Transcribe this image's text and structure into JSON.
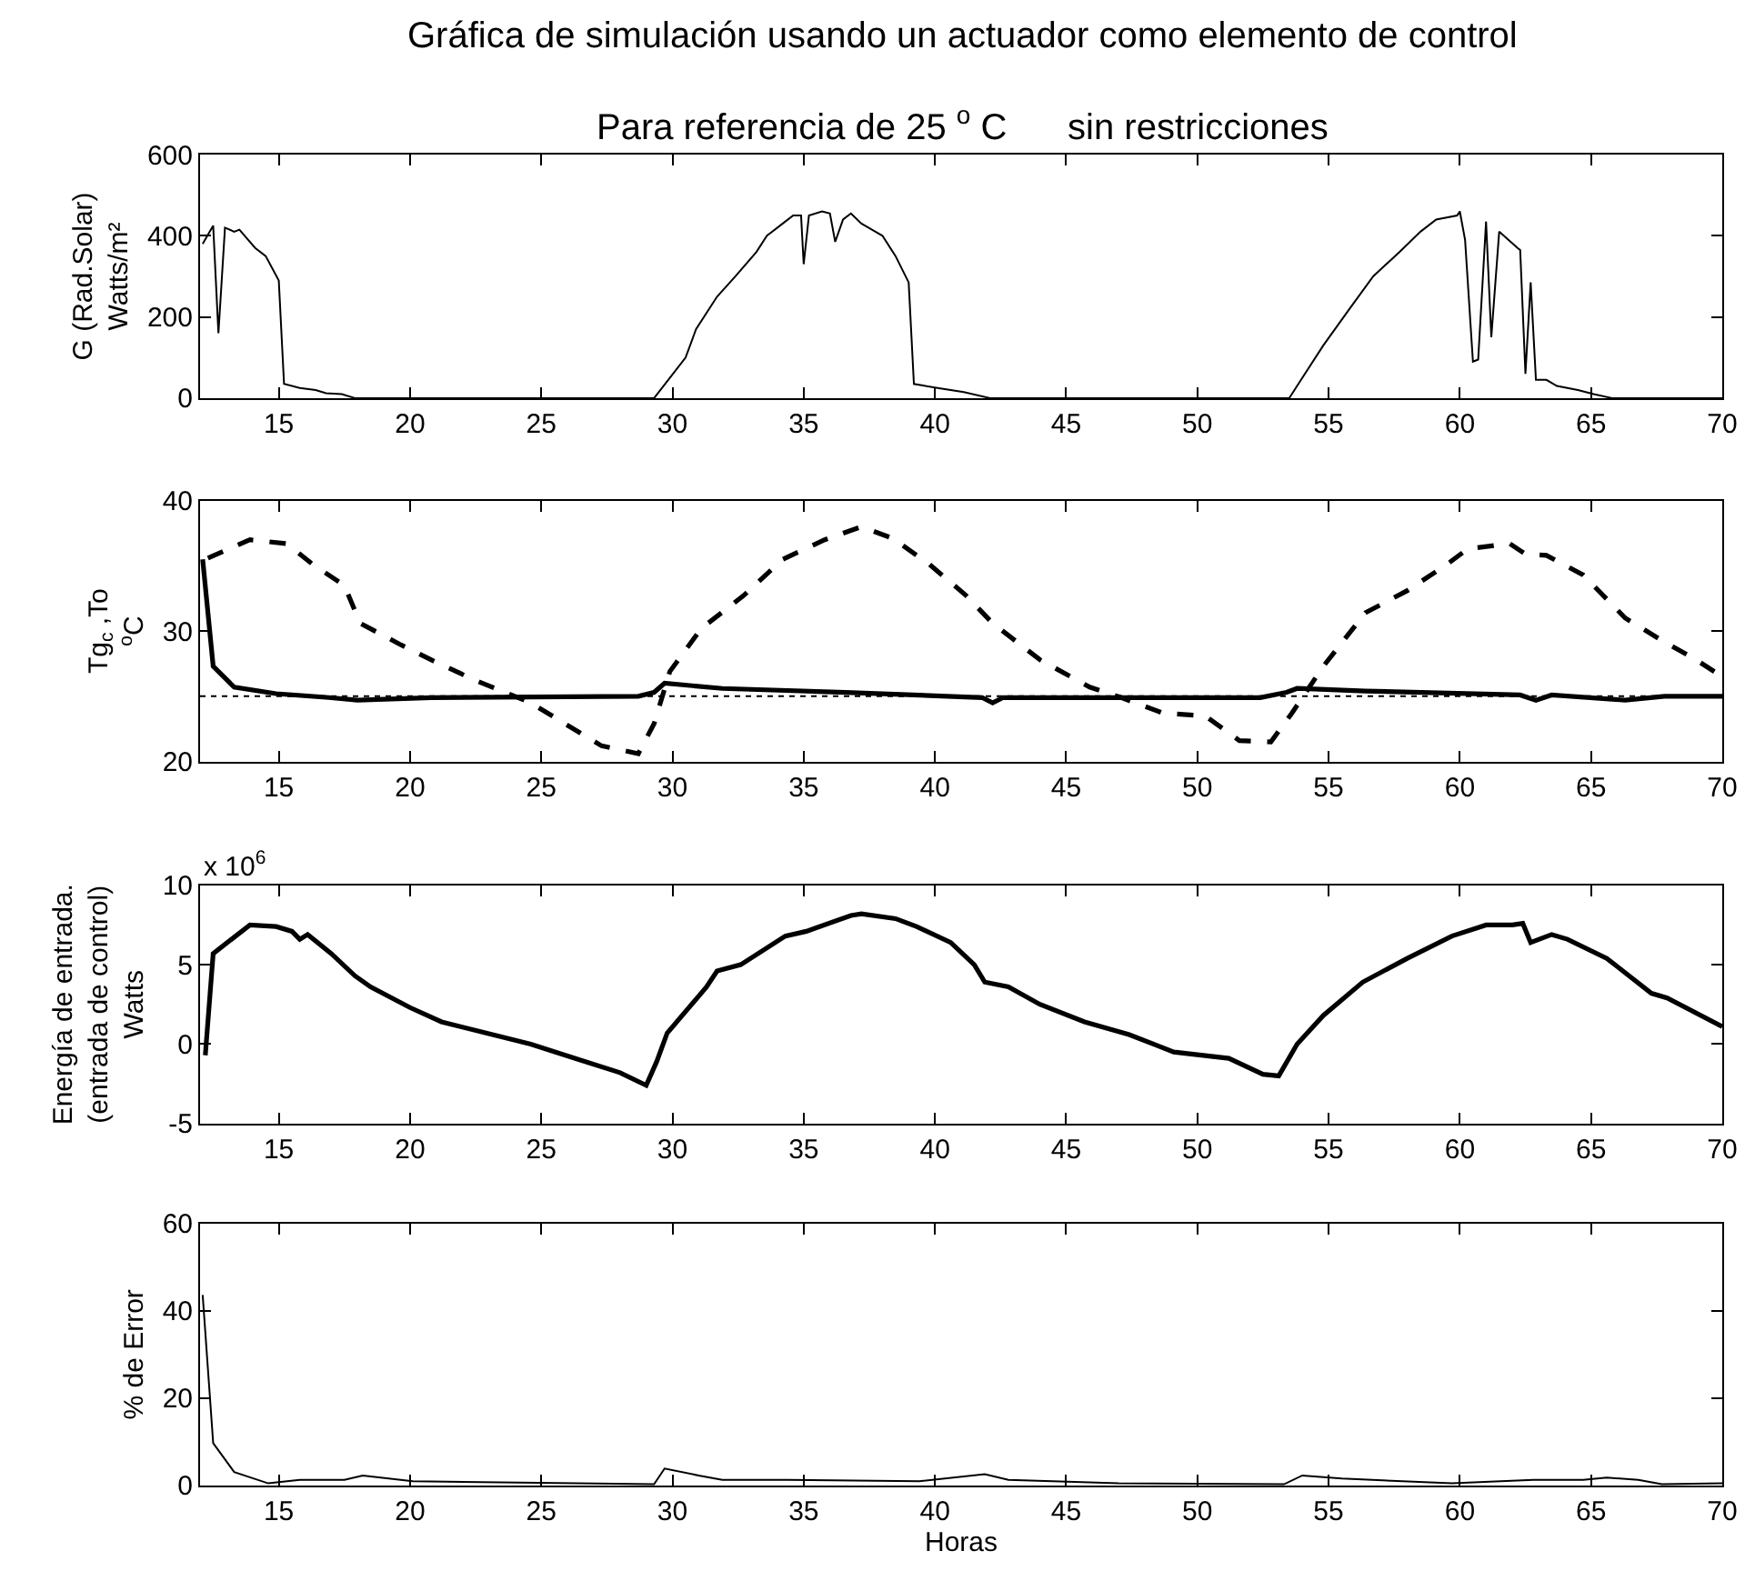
{
  "chart_data": [
    {
      "type": "line",
      "title": "Gráfica de simulación usando un actuador como elemento de control",
      "subtitle": "Para referencia de 25 $^{o}$ C      sin restricciones",
      "ylabel": "G (Rad.Solar)\nWatts/m²",
      "xlim": [
        12,
        70
      ],
      "xticks": [
        15,
        20,
        25,
        30,
        35,
        40,
        45,
        50,
        55,
        60,
        65,
        70
      ],
      "ylim": [
        0,
        600
      ],
      "yticks": [
        0,
        200,
        400,
        600
      ],
      "series": [
        {
          "color": "#000000",
          "x": [
            12.1,
            12.5,
            12.7,
            12.95,
            13.3,
            13.5,
            13.7,
            14.1,
            14.5,
            15.0,
            15.2,
            15.8,
            16.4,
            16.8,
            17.4,
            17.9,
            29.3,
            29.9,
            30.5,
            30.9,
            31.7,
            32.4,
            33.2,
            33.6,
            34.2,
            34.6,
            34.9,
            35.0,
            35.2,
            35.7,
            36.0,
            36.2,
            36.5,
            36.8,
            37.2,
            38.0,
            38.5,
            39.0,
            39.2,
            40.1,
            41.1,
            42.1,
            53.5,
            53.9,
            54.8,
            55.8,
            56.7,
            57.7,
            58.5,
            59.1,
            59.9,
            60.0,
            60.2,
            60.5,
            60.7,
            61.0,
            61.2,
            61.5,
            62.2,
            62.3,
            62.5,
            62.7,
            62.9,
            63.3,
            63.7,
            64.5,
            65.1,
            65.8,
            70.0
          ],
          "values": [
            380,
            425,
            160,
            420,
            410,
            415,
            400,
            370,
            350,
            290,
            35,
            25,
            20,
            12,
            10,
            0,
            0,
            50,
            100,
            170,
            250,
            300,
            360,
            400,
            430,
            450,
            450,
            330,
            450,
            460,
            455,
            385,
            440,
            455,
            430,
            400,
            350,
            285,
            35,
            25,
            15,
            0,
            0,
            40,
            130,
            220,
            300,
            360,
            410,
            440,
            450,
            460,
            390,
            90,
            95,
            435,
            150,
            410,
            370,
            365,
            60,
            285,
            45,
            45,
            30,
            20,
            10,
            0,
            0
          ]
        }
      ]
    },
    {
      "type": "line",
      "ylabel": "Tg$_{c}$ ,To\n$^{o}$C",
      "xlim": [
        12,
        70
      ],
      "xticks": [
        15,
        20,
        25,
        30,
        35,
        40,
        45,
        50,
        55,
        60,
        65,
        70
      ],
      "ylim": [
        20,
        40
      ],
      "yticks": [
        20,
        30,
        40
      ],
      "ref_lines": [
        {
          "axis": "y",
          "value": 25,
          "color": "#000000",
          "line_style": "dotted"
        }
      ],
      "series": [
        {
          "color": "#000000",
          "line_style": "dashed",
          "x": [
            12.3,
            13.9,
            15.3,
            16.3,
            17.5,
            18.1,
            19.6,
            20.8,
            22.4,
            24.6,
            25.9,
            27.3,
            28.7,
            29.3,
            29.9,
            31.1,
            32.7,
            34.2,
            35.8,
            37.2,
            38.4,
            39.8,
            41.2,
            42.2,
            44.0,
            45.9,
            47.1,
            48.7,
            50.3,
            51.6,
            52.8,
            53.6,
            54.8,
            56.4,
            58.0,
            59.5,
            60.3,
            61.9,
            62.5,
            63.3,
            64.7,
            66.3,
            67.6,
            69.0,
            70.0
          ],
          "values": [
            35.6,
            37.0,
            36.7,
            35.1,
            33.5,
            30.6,
            29.0,
            27.8,
            26.3,
            24.5,
            22.9,
            21.2,
            20.6,
            22.9,
            26.9,
            30.2,
            32.7,
            35.5,
            37.0,
            38.0,
            37.1,
            35.1,
            32.7,
            30.6,
            27.8,
            25.7,
            24.9,
            23.7,
            23.5,
            21.6,
            21.5,
            23.7,
            27.3,
            31.4,
            33.1,
            35.1,
            36.3,
            36.7,
            35.9,
            35.8,
            34.3,
            31.0,
            29.4,
            27.8,
            26.5
          ]
        },
        {
          "color": "#000000",
          "line_style": "solid",
          "x": [
            12.1,
            12.5,
            13.3,
            14.9,
            16.9,
            18.0,
            20.8,
            28.7,
            29.3,
            29.7,
            31.9,
            36.6,
            41.8,
            42.2,
            42.6,
            52.4,
            53.4,
            53.8,
            56.4,
            62.3,
            62.9,
            63.5,
            66.3,
            67.8,
            70.0
          ],
          "values": [
            35.5,
            27.3,
            25.7,
            25.2,
            24.9,
            24.7,
            24.9,
            25.0,
            25.3,
            26.0,
            25.6,
            25.3,
            24.9,
            24.5,
            24.9,
            24.9,
            25.3,
            25.6,
            25.4,
            25.1,
            24.7,
            25.1,
            24.7,
            25.0,
            25.0
          ]
        }
      ]
    },
    {
      "type": "line",
      "ylabel": "Energía de entrada.\n(entrada de control)\nWatts",
      "annotations": [
        "x 10$^{6}$"
      ],
      "xlim": [
        12,
        70
      ],
      "xticks": [
        15,
        20,
        25,
        30,
        35,
        40,
        45,
        50,
        55,
        60,
        65,
        70
      ],
      "ylim": [
        -5,
        10
      ],
      "yticks": [
        -5,
        0,
        5,
        10
      ],
      "series": [
        {
          "color": "#000000",
          "x": [
            12.2,
            12.5,
            13.2,
            13.9,
            14.9,
            15.5,
            15.8,
            16.1,
            17.0,
            17.9,
            18.5,
            20.0,
            21.2,
            22.9,
            24.6,
            26.3,
            28.0,
            29.0,
            29.4,
            29.8,
            31.3,
            31.7,
            32.6,
            34.3,
            35.1,
            36.8,
            37.2,
            38.5,
            39.3,
            40.6,
            41.5,
            41.9,
            42.8,
            44.0,
            45.7,
            47.4,
            49.1,
            51.2,
            52.5,
            53.1,
            53.8,
            54.8,
            56.3,
            58.0,
            59.7,
            61.0,
            62.0,
            62.4,
            62.7,
            63.5,
            64.1,
            65.6,
            67.3,
            67.9,
            70.0
          ],
          "values": [
            -0.7,
            5.7,
            6.6,
            7.5,
            7.4,
            7.1,
            6.6,
            6.9,
            5.7,
            4.3,
            3.6,
            2.3,
            1.4,
            0.7,
            0.0,
            -0.9,
            -1.8,
            -2.6,
            -1.1,
            0.7,
            3.6,
            4.6,
            5.0,
            6.8,
            7.1,
            8.1,
            8.2,
            7.9,
            7.4,
            6.4,
            5.0,
            3.9,
            3.6,
            2.5,
            1.4,
            0.6,
            -0.5,
            -0.9,
            -1.9,
            -2.0,
            0.0,
            1.8,
            3.9,
            5.4,
            6.8,
            7.5,
            7.5,
            7.6,
            6.4,
            6.9,
            6.6,
            5.4,
            3.2,
            2.9,
            1.1
          ]
        }
      ]
    },
    {
      "type": "line",
      "xlabel": "Horas",
      "ylabel": "% de Error",
      "xlim": [
        12,
        70
      ],
      "xticks": [
        15,
        20,
        25,
        30,
        35,
        40,
        45,
        50,
        55,
        60,
        65,
        70
      ],
      "ylim": [
        0,
        60
      ],
      "yticks": [
        0,
        20,
        40,
        60
      ],
      "series": [
        {
          "color": "#000000",
          "x": [
            12.1,
            12.5,
            13.3,
            14.6,
            15.8,
            17.5,
            18.2,
            20.1,
            29.3,
            29.7,
            31.0,
            31.9,
            34.4,
            39.4,
            41.9,
            42.8,
            47.0,
            53.3,
            54.0,
            55.5,
            59.7,
            62.8,
            64.7,
            65.6,
            66.8,
            67.7,
            70.0
          ],
          "values": [
            43.6,
            9.7,
            3.1,
            0.5,
            1.3,
            1.3,
            2.3,
            1.0,
            0.3,
            3.9,
            2.3,
            1.3,
            1.3,
            1.0,
            2.6,
            1.3,
            0.5,
            0.3,
            2.3,
            1.6,
            0.5,
            1.3,
            1.3,
            1.8,
            1.3,
            0.3,
            0.5
          ]
        }
      ]
    }
  ]
}
